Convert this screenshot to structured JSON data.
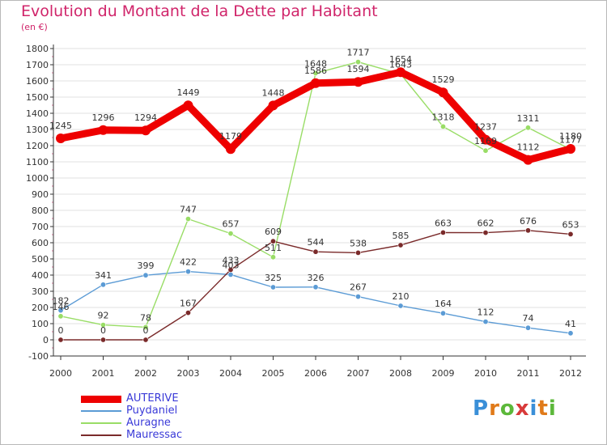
{
  "header": {
    "title": "Evolution du Montant de la Dette par Habitant",
    "subtitle": "(en €)"
  },
  "colors": {
    "title": "#d0246a",
    "axis": "#333333",
    "grid": "#e2e2e2",
    "legend_text": "#3a3ad8"
  },
  "chart_data": {
    "type": "line",
    "title": "Evolution du Montant de la Dette par Habitant",
    "subtitle": "(en €)",
    "xlabel": "",
    "ylabel": "",
    "x": [
      "2000",
      "2001",
      "2002",
      "2003",
      "2004",
      "2005",
      "2006",
      "2007",
      "2008",
      "2009",
      "2010",
      "2011",
      "2012"
    ],
    "ylim": [
      -100,
      1800
    ],
    "yticks": [
      -100,
      0,
      100,
      200,
      300,
      400,
      500,
      600,
      700,
      800,
      900,
      1000,
      1100,
      1200,
      1300,
      1400,
      1500,
      1600,
      1700,
      1800
    ],
    "grid": true,
    "legend_position": "bottom-left",
    "series": [
      {
        "name": "AUTERIVE",
        "color": "#ee0000",
        "values": [
          1245,
          1296,
          1294,
          1449,
          1179,
          1448,
          1586,
          1594,
          1654,
          1529,
          1237,
          1112,
          1180
        ],
        "labels": [
          "1245",
          "1296",
          "1294",
          "1449",
          "1179",
          "1448",
          "1586",
          "1594",
          "1654",
          "1529",
          "1237",
          "1112",
          "1180"
        ]
      },
      {
        "name": "Puydaniel",
        "color": "#5b9bd5",
        "values": [
          182,
          341,
          399,
          422,
          403,
          325,
          326,
          267,
          210,
          164,
          112,
          74,
          41
        ],
        "labels": [
          "182",
          "341",
          "399",
          "422",
          "403",
          "325",
          "326",
          "267",
          "210",
          "164",
          "112",
          "74",
          "41"
        ]
      },
      {
        "name": "Auragne",
        "color": "#99dd66",
        "values": [
          146,
          92,
          78,
          747,
          657,
          511,
          1648,
          1717,
          1643,
          1318,
          1169,
          1311,
          1177
        ],
        "labels": [
          "146",
          "92",
          "78",
          "747",
          "657",
          "511",
          "1648",
          "1717",
          "1643",
          "1318",
          "1169",
          "1311",
          "1177"
        ]
      },
      {
        "name": "Mauressac",
        "color": "#7a2a2a",
        "values": [
          0,
          0,
          0,
          167,
          433,
          609,
          544,
          538,
          585,
          663,
          662,
          676,
          653
        ],
        "labels": [
          "0",
          "0",
          "0",
          "167",
          "433",
          "609",
          "544",
          "538",
          "585",
          "663",
          "662",
          "676",
          "653"
        ]
      }
    ]
  },
  "legend": {
    "items": [
      {
        "label": "AUTERIVE",
        "color": "#ee0000"
      },
      {
        "label": "Puydaniel",
        "color": "#5b9bd5"
      },
      {
        "label": "Auragne",
        "color": "#99dd66"
      },
      {
        "label": "Mauressac",
        "color": "#7a2a2a"
      }
    ]
  },
  "logo": {
    "letters": [
      "P",
      "r",
      "o",
      "x",
      "i",
      "t",
      "i"
    ],
    "colors": [
      "#3a8fd8",
      "#e07a1a",
      "#5cb83a",
      "#d83a3a",
      "#3a8fd8",
      "#e07a1a",
      "#5cb83a"
    ]
  }
}
